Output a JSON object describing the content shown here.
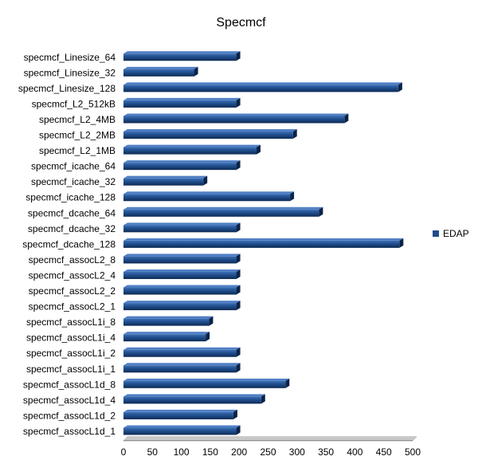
{
  "chart_data": {
    "type": "bar",
    "orientation": "horizontal",
    "title": "Specmcf",
    "xlabel": "",
    "ylabel": "",
    "xlim": [
      0,
      500
    ],
    "x_ticks": [
      0,
      50,
      100,
      150,
      200,
      250,
      300,
      350,
      400,
      450,
      500
    ],
    "grid": false,
    "legend_position": "right",
    "categories": [
      "specmcf_Linesize_64",
      "specmcf_Linesize_32",
      "specmcf_Linesize_128",
      "specmcf_L2_512kB",
      "specmcf_L2_4MB",
      "specmcf_L2_2MB",
      "specmcf_L2_1MB",
      "specmcf_icache_64",
      "specmcf_icache_32",
      "specmcf_icache_128",
      "specmcf_dcache_64",
      "specmcf_dcache_32",
      "specmcf_dcache_128",
      "specmcf_assocL2_8",
      "specmcf_assocL2_4",
      "specmcf_assocL2_2",
      "specmcf_assocL2_1",
      "specmcf_assocL1i_8",
      "specmcf_assocL1i_4",
      "specmcf_assocL1i_2",
      "specmcf_assocL1i_1",
      "specmcf_assocL1d_8",
      "specmcf_assocL1d_4",
      "specmcf_assocL1d_2",
      "specmcf_assocL1d_1"
    ],
    "series": [
      {
        "name": "EDAP",
        "color": "#1F4E8C",
        "values": [
          195,
          122,
          475,
          195,
          382,
          293,
          230,
          195,
          138,
          288,
          338,
          195,
          477,
          195,
          195,
          195,
          195,
          148,
          142,
          195,
          195,
          280,
          238,
          190,
          195
        ]
      }
    ]
  }
}
